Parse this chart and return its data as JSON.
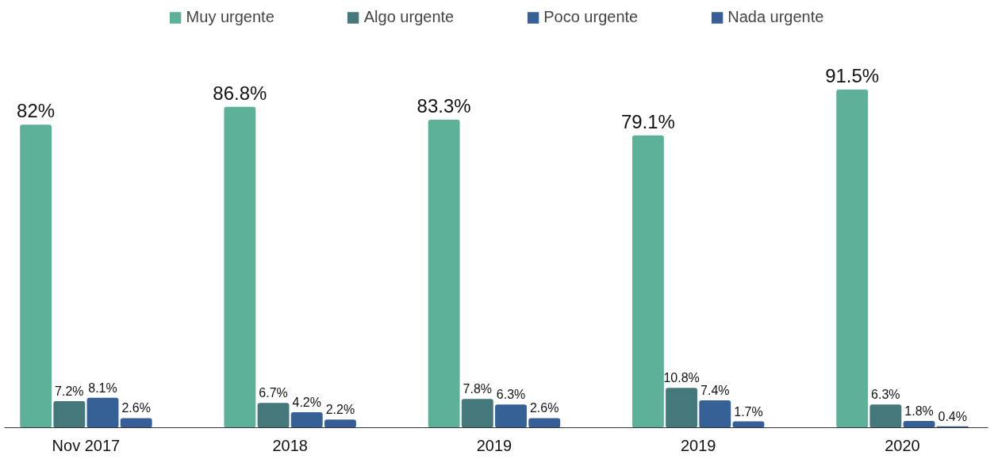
{
  "chart_data": {
    "type": "bar",
    "categories": [
      "Nov 2017",
      "2018",
      "2019",
      "2019",
      "2020"
    ],
    "series": [
      {
        "name": "Muy urgente",
        "color": "#5db199",
        "values": [
          82,
          86.8,
          83.3,
          79.1,
          91.5
        ],
        "value_labels": [
          "82%",
          "86.8%",
          "83.3%",
          "79.1%",
          "91.5%"
        ]
      },
      {
        "name": "Algo urgente",
        "color": "#44787a",
        "values": [
          7.2,
          6.7,
          7.8,
          10.8,
          6.3
        ],
        "value_labels": [
          "7.2%",
          "6.7%",
          "7.8%",
          "10.8%",
          "6.3%"
        ]
      },
      {
        "name": "Poco urgente",
        "color": "#356197",
        "values": [
          8.1,
          4.2,
          6.3,
          7.4,
          1.8
        ],
        "value_labels": [
          "8.1%",
          "4.2%",
          "6.3%",
          "7.4%",
          "1.8%"
        ]
      },
      {
        "name": "Nada urgente",
        "color": "#365f97",
        "values": [
          2.6,
          2.2,
          2.6,
          1.7,
          0.4
        ],
        "value_labels": [
          "2.6%",
          "2.2%",
          "2.6%",
          "1.7%",
          "0.4%"
        ]
      }
    ],
    "legend": "top",
    "grid": false
  }
}
